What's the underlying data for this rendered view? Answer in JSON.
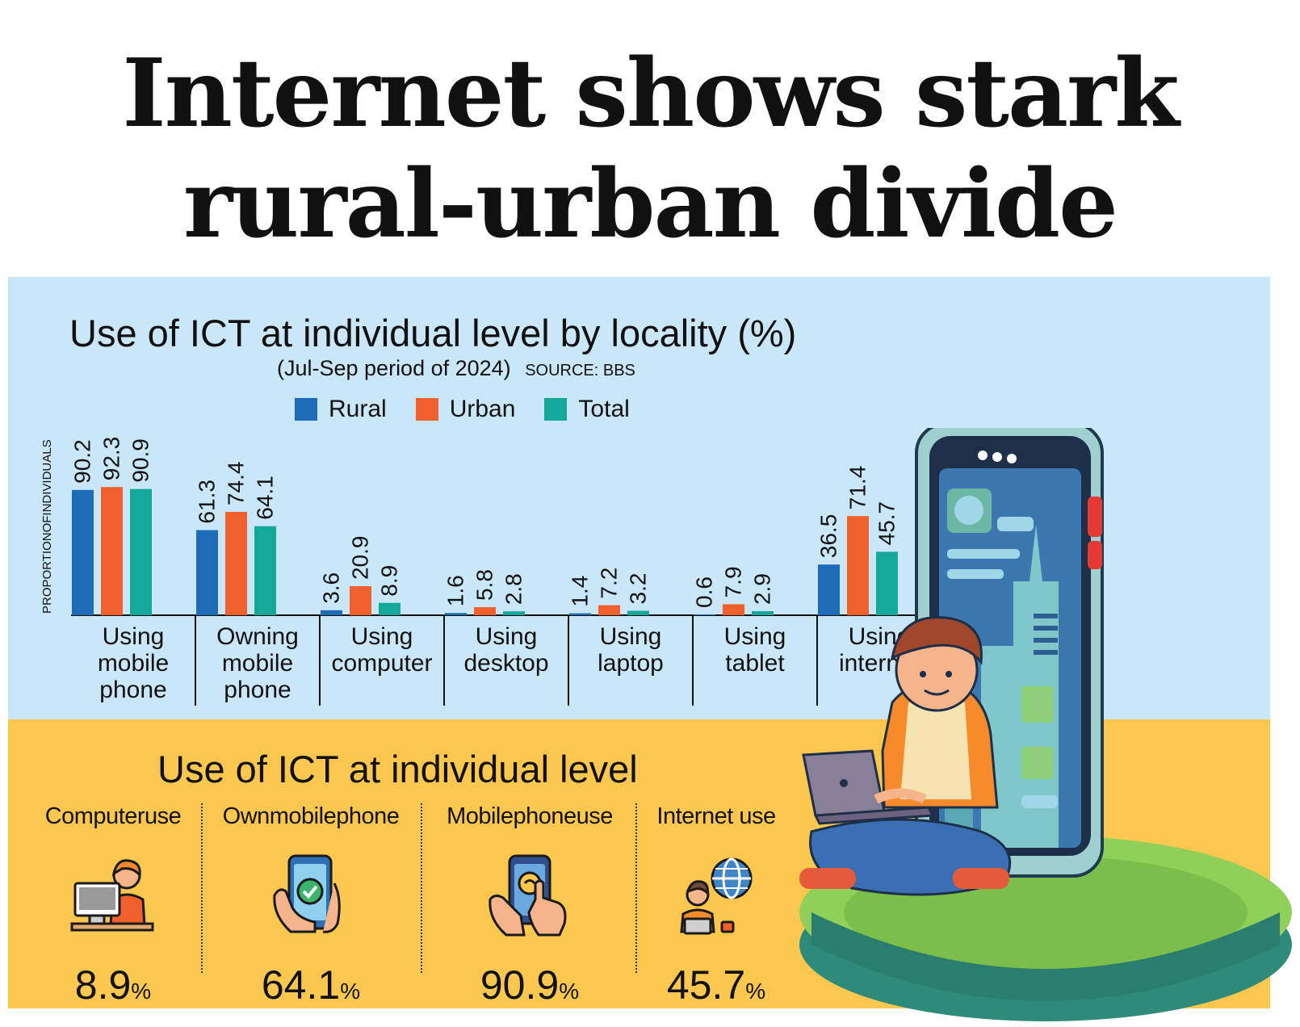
{
  "headline": {
    "line1": "Internet shows stark",
    "line2": "rural-urban divide"
  },
  "chart_data": {
    "type": "bar",
    "title": "Use of ICT at individual level by locality (%)",
    "subtitle": "(Jul-Sep period of 2024)",
    "source": "SOURCE: BBS",
    "ylabel": "PROPORTIONOFINDIVIDUALS",
    "xlabel": "",
    "ylim": [
      0,
      100
    ],
    "grid": false,
    "legend_position": "top",
    "categories": [
      "Using mobile phone",
      "Owning mobile phone",
      "Using computer",
      "Using desktop",
      "Using laptop",
      "Using tablet",
      "Using internet"
    ],
    "series": [
      {
        "name": "Rural",
        "color": "#1e6bb8",
        "values": [
          90.2,
          61.3,
          3.6,
          1.6,
          1.4,
          0.6,
          36.5
        ]
      },
      {
        "name": "Urban",
        "color": "#f0602c",
        "values": [
          92.3,
          74.4,
          20.9,
          5.8,
          7.2,
          7.9,
          71.4
        ]
      },
      {
        "name": "Total",
        "color": "#14a89b",
        "values": [
          90.9,
          64.1,
          8.9,
          2.8,
          3.2,
          2.9,
          45.7
        ]
      }
    ],
    "category_display": [
      [
        "Using",
        "mobile",
        "phone"
      ],
      [
        "Owning",
        "mobile",
        "phone"
      ],
      [
        "Using",
        "computer"
      ],
      [
        "Using",
        "desktop"
      ],
      [
        "Using",
        "laptop"
      ],
      [
        "Using",
        "tablet"
      ],
      [
        "Using",
        "internet"
      ]
    ]
  },
  "summary": {
    "title": "Use of ICT at individual level",
    "stats": [
      {
        "label": "Computeruse",
        "value": "8.9",
        "unit": "%",
        "icon": "person-at-computer-icon"
      },
      {
        "label": "Ownmobilephone",
        "value": "64.1",
        "unit": "%",
        "icon": "hand-holding-phone-icon"
      },
      {
        "label": "Mobilephoneuse",
        "value": "90.9",
        "unit": "%",
        "icon": "hands-tapping-phone-icon"
      },
      {
        "label": "Internet use",
        "value": "45.7",
        "unit": "%",
        "icon": "person-with-globe-icon"
      }
    ]
  },
  "illustration": {
    "icon": "boy-with-laptop-and-giant-phone-icon"
  }
}
